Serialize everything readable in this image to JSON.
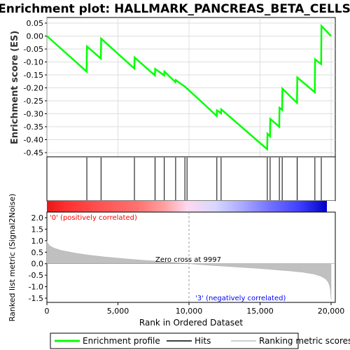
{
  "chart_data": {
    "type": "line",
    "title": "Enrichment plot: HALLMARK_PANCREAS_BETA_CELLS",
    "top_panel": {
      "ylabel": "Enrichment score (ES)",
      "ylim": [
        -0.45,
        0.05
      ],
      "yticks": [
        "0.05",
        "0.00",
        "-0.05",
        "-0.10",
        "-0.15",
        "-0.20",
        "-0.25",
        "-0.30",
        "-0.35",
        "-0.40",
        "-0.45"
      ],
      "ytick_values": [
        0.05,
        0.0,
        -0.05,
        -0.1,
        -0.15,
        -0.2,
        -0.25,
        -0.3,
        -0.35,
        -0.4,
        -0.45
      ],
      "grid": true,
      "series": [
        {
          "name": "Enrichment profile",
          "color": "#00ff00",
          "x": [
            0,
            2800,
            2820,
            3800,
            3820,
            6150,
            6170,
            7600,
            7620,
            8250,
            8270,
            9050,
            9070,
            9700,
            9720,
            9850,
            9870,
            11950,
            11970,
            12250,
            12270,
            15500,
            15520,
            15700,
            15720,
            16350,
            16370,
            16550,
            16570,
            17600,
            17620,
            18850,
            18870,
            19300,
            19320,
            20000
          ],
          "y": [
            0.0,
            -0.137,
            -0.04,
            -0.087,
            -0.01,
            -0.125,
            -0.083,
            -0.152,
            -0.127,
            -0.152,
            -0.137,
            -0.178,
            -0.17,
            -0.195,
            -0.195,
            -0.203,
            -0.203,
            -0.308,
            -0.287,
            -0.298,
            -0.283,
            -0.437,
            -0.377,
            -0.387,
            -0.32,
            -0.35,
            -0.277,
            -0.285,
            -0.203,
            -0.258,
            -0.16,
            -0.217,
            -0.09,
            -0.108,
            0.039,
            0.0
          ]
        }
      ]
    },
    "hits": {
      "name": "Hits",
      "positions": [
        2810,
        3810,
        6160,
        7610,
        8260,
        9060,
        9710,
        9860,
        11960,
        12260,
        15510,
        15710,
        16360,
        16560,
        17610,
        18860,
        19310
      ]
    },
    "bottom_panel": {
      "ylabel": "Ranked list metric (Signal2Noise)",
      "ylim": [
        -1.6,
        2.15
      ],
      "yticks": [
        "2.0",
        "1.5",
        "1.0",
        "0.5",
        "0.0",
        "-0.5",
        "-1.0",
        "-1.5"
      ],
      "ytick_values": [
        2.0,
        1.5,
        1.0,
        0.5,
        0.0,
        -0.5,
        -1.0,
        -1.5
      ],
      "series": {
        "name": "Ranking metric scores",
        "color": "#c0c0c0",
        "x": [
          0,
          50,
          200,
          500,
          1000,
          2000,
          3000,
          4000,
          5000,
          6000,
          7000,
          8000,
          9000,
          9997,
          11000,
          12000,
          13000,
          14000,
          15000,
          16000,
          17000,
          18000,
          18800,
          19300,
          19600,
          19800,
          19900,
          19950,
          20000
        ],
        "y": [
          1.0,
          0.9,
          0.78,
          0.68,
          0.58,
          0.46,
          0.37,
          0.3,
          0.24,
          0.19,
          0.14,
          0.1,
          0.05,
          0.0,
          -0.05,
          -0.09,
          -0.13,
          -0.17,
          -0.21,
          -0.26,
          -0.31,
          -0.37,
          -0.45,
          -0.55,
          -0.66,
          -0.8,
          -0.98,
          -1.15,
          -1.55
        ]
      },
      "annotations": {
        "zero_cross": "Zero cross at 9997",
        "zero_cross_x": 9997,
        "positive": "'0' (positively correlated)",
        "negative": "'3' (negatively correlated)"
      }
    },
    "xlabel": "Rank in Ordered Dataset",
    "xlim": [
      0,
      20000
    ],
    "xticks": [
      "0",
      "5,000",
      "10,000",
      "15,000",
      "20,000"
    ],
    "xtick_values": [
      0,
      5000,
      10000,
      15000,
      20000
    ],
    "legend": {
      "placement": "bottom",
      "items": [
        "Enrichment profile",
        "Hits",
        "Ranking metric scores"
      ]
    },
    "colors": {
      "profile": "#00ff00",
      "hit": "#000000",
      "metric_fill": "#c0c0c0",
      "positive": "#ff0000",
      "negative": "#0000ff",
      "grid": "#d3d3d3"
    }
  }
}
